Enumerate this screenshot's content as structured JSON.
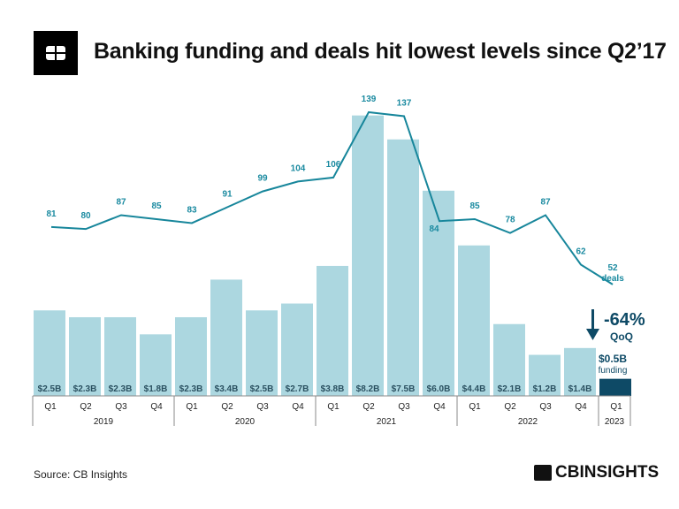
{
  "header": {
    "title": "Banking funding and deals hit lowest levels since Q2’17"
  },
  "footer": {
    "source": "Source: CB Insights",
    "brand": "CBINSIGHTS"
  },
  "chart_data": {
    "type": "bar+line",
    "title": "Banking funding and deals hit lowest levels since Q2’17",
    "categories": [
      "Q1",
      "Q2",
      "Q3",
      "Q4",
      "Q1",
      "Q2",
      "Q3",
      "Q4",
      "Q1",
      "Q2",
      "Q3",
      "Q4",
      "Q1",
      "Q2",
      "Q3",
      "Q4",
      "Q1"
    ],
    "years": [
      {
        "label": "2019",
        "count": 4
      },
      {
        "label": "2020",
        "count": 4
      },
      {
        "label": "2021",
        "count": 4
      },
      {
        "label": "2022",
        "count": 4
      },
      {
        "label": "2023",
        "count": 1
      }
    ],
    "series": [
      {
        "name": "funding",
        "type": "bar",
        "unit": "$B",
        "values": [
          2.5,
          2.3,
          2.3,
          1.8,
          2.3,
          3.4,
          2.5,
          2.7,
          3.8,
          8.2,
          7.5,
          6.0,
          4.4,
          2.1,
          1.2,
          1.4,
          0.5
        ],
        "labels": [
          "$2.5B",
          "$2.3B",
          "$2.3B",
          "$1.8B",
          "$2.3B",
          "$3.4B",
          "$2.5B",
          "$2.7B",
          "$3.8B",
          "$8.2B",
          "$7.5B",
          "$6.0B",
          "$4.4B",
          "$2.1B",
          "$1.2B",
          "$1.4B",
          "$0.5B"
        ]
      },
      {
        "name": "deals",
        "type": "line",
        "values": [
          81,
          80,
          87,
          85,
          83,
          91,
          99,
          104,
          106,
          139,
          137,
          84,
          85,
          78,
          87,
          62,
          52
        ]
      }
    ],
    "annotations": {
      "change": "-64%",
      "change_period": "QoQ",
      "last_funding": "$0.5B",
      "last_funding_label": "funding",
      "last_deals_label": "deals"
    },
    "colors": {
      "bar": "#acd7e0",
      "bar_highlight": "#0e4a66",
      "line": "#17869b",
      "line_label": "#1a8aa0",
      "annotation": "#0e4a66"
    }
  }
}
